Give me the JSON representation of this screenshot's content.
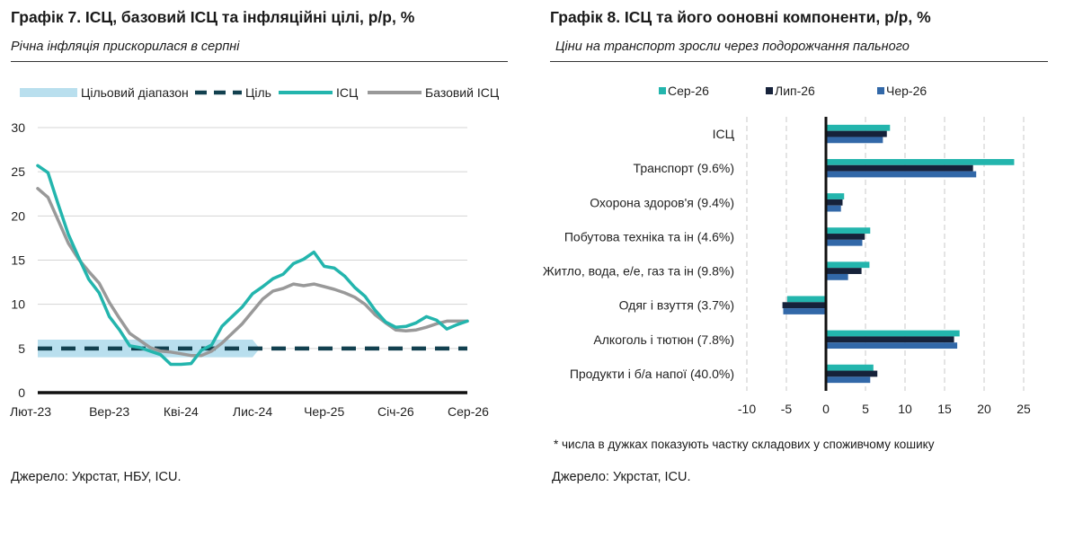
{
  "charts": [
    {
      "id": "cpi-core-target",
      "title": "Графік 7. ІСЦ, базовий ІСЦ та інфляційні цілі, р/р, %",
      "subtitle": "Річна інфляція прискорилася в серпні",
      "source": "Джерело: Укрстат, НБУ, ICU.",
      "colors": {
        "band": "#b9dfee",
        "target": "#12404f",
        "cpi": "#23b5ad",
        "core": "#999999"
      }
    },
    {
      "id": "cpi-components",
      "title": "Графік 8. ІСЦ та його ооновні компоненти, р/р, %",
      "subtitle": "Ціни на транспорт зросли через подорожчання пального",
      "note": "* числа в дужках показують частку складових у споживчому кошику",
      "source": "Джерело: Укрстат, ICU.",
      "colors": {
        "Сер-26": "#23b5ad",
        "Лип-26": "#16223a",
        "Чер-26": "#3268a8"
      }
    }
  ],
  "chart_data": [
    {
      "type": "line",
      "x_tick_labels": [
        "Лют-23",
        "Вер-23",
        "Кві-24",
        "Лис-24",
        "Чер-25",
        "Січ-26",
        "Сер-26"
      ],
      "x": [
        "Лют-23",
        "Бер-23",
        "Кві-23",
        "Тра-23",
        "Чер-23",
        "Лип-23",
        "Сер-23",
        "Вер-23",
        "Жов-23",
        "Лис-23",
        "Гру-23",
        "Січ-24",
        "Лют-24",
        "Бер-24",
        "Кві-24",
        "Тра-24",
        "Чер-24",
        "Лип-24",
        "Сер-24",
        "Вер-24",
        "Жов-24",
        "Лис-24",
        "Гру-24",
        "Січ-25",
        "Лют-25",
        "Бер-25",
        "Кві-25",
        "Тра-25",
        "Чер-25",
        "Лип-25",
        "Сер-25",
        "Вер-25",
        "Жов-25",
        "Лис-25",
        "Гру-25",
        "Січ-26",
        "Лют-26",
        "Бер-26",
        "Кві-26",
        "Тра-26",
        "Чер-26",
        "Лип-26",
        "Сер-26"
      ],
      "series": [
        {
          "name": "Цільовий діапазон",
          "kind": "band",
          "low": 4,
          "high": 6,
          "x_end": "Лис-24"
        },
        {
          "name": "Ціль",
          "kind": "target",
          "values": [
            5,
            5,
            5,
            5,
            5,
            5,
            5,
            5,
            5,
            5,
            5,
            5,
            5,
            5,
            5,
            5,
            5,
            5,
            5,
            5,
            5,
            5,
            5,
            5,
            5,
            5,
            5,
            5,
            5,
            5,
            5,
            5,
            5,
            5,
            5,
            5,
            5,
            5,
            5,
            5,
            5,
            5,
            5
          ]
        },
        {
          "name": "ІСЦ",
          "kind": "line",
          "values": [
            25.7,
            24.9,
            21.3,
            17.9,
            15.3,
            12.8,
            11.3,
            8.6,
            7.1,
            5.3,
            5.1,
            4.7,
            4.3,
            3.2,
            3.2,
            3.3,
            4.8,
            5.4,
            7.5,
            8.6,
            9.7,
            11.2,
            12.0,
            12.9,
            13.4,
            14.6,
            15.1,
            15.9,
            14.3,
            14.1,
            13.2,
            11.9,
            10.9,
            9.3,
            8.0,
            7.4,
            7.5,
            7.9,
            8.6,
            8.2,
            7.2,
            7.7,
            8.1
          ]
        },
        {
          "name": "Базовий ІСЦ",
          "kind": "line",
          "values": [
            23.1,
            22.1,
            19.5,
            16.9,
            15.1,
            13.7,
            12.4,
            10.2,
            8.4,
            6.7,
            5.9,
            5.1,
            4.7,
            4.6,
            4.4,
            4.2,
            4.2,
            4.7,
            5.6,
            6.7,
            7.8,
            9.2,
            10.6,
            11.5,
            11.8,
            12.3,
            12.1,
            12.3,
            12.0,
            11.7,
            11.3,
            10.8,
            10.0,
            8.8,
            7.9,
            7.1,
            7.0,
            7.1,
            7.4,
            7.8,
            8.1,
            8.1,
            8.1
          ]
        }
      ],
      "ylim": [
        0,
        30
      ],
      "yticks": [
        0,
        5,
        10,
        15,
        20,
        25,
        30
      ],
      "grid": "horizontal",
      "legend_position": "top"
    },
    {
      "type": "bar",
      "orientation": "horizontal",
      "categories": [
        "ІСЦ",
        "Транспорт (9.6%)",
        "Охорона здоров'я (9.4%)",
        "Побутова техніка та ін (4.6%)",
        "Житло, вода, е/е, газ та ін (9.8%)",
        "Одяг і взуття (3.7%)",
        "Алкоголь і тютюн (7.8%)",
        "Продукти і б/а напої (40.0%)"
      ],
      "series": [
        {
          "name": "Сер-26",
          "values": [
            8.1,
            23.8,
            2.3,
            5.6,
            5.5,
            -4.9,
            16.9,
            6.0
          ]
        },
        {
          "name": "Лип-26",
          "values": [
            7.7,
            18.6,
            2.1,
            4.9,
            4.5,
            -5.5,
            16.2,
            6.5
          ]
        },
        {
          "name": "Чер-26",
          "values": [
            7.2,
            19.0,
            1.9,
            4.6,
            2.8,
            -5.4,
            16.6,
            5.6
          ]
        }
      ],
      "xlim": [
        -10,
        25
      ],
      "xticks": [
        -10,
        -5,
        0,
        5,
        10,
        15,
        20,
        25
      ],
      "grid": "vertical dashed",
      "legend_position": "top"
    }
  ]
}
